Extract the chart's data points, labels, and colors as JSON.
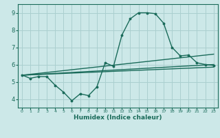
{
  "title": "",
  "xlabel": "Humidex (Indice chaleur)",
  "ylabel": "",
  "background_color": "#cce8e8",
  "grid_color": "#aacfcf",
  "line_color": "#1a6b5a",
  "xlim": [
    -0.5,
    23.5
  ],
  "ylim": [
    3.5,
    9.5
  ],
  "xticks": [
    0,
    1,
    2,
    3,
    4,
    5,
    6,
    7,
    8,
    9,
    10,
    11,
    12,
    13,
    14,
    15,
    16,
    17,
    18,
    19,
    20,
    21,
    22,
    23
  ],
  "yticks": [
    4,
    5,
    6,
    7,
    8,
    9
  ],
  "series1_x": [
    0,
    1,
    2,
    3,
    4,
    5,
    6,
    7,
    8,
    9,
    10,
    11,
    12,
    13,
    14,
    15,
    16,
    17,
    18,
    19,
    20,
    21,
    22,
    23
  ],
  "series1_y": [
    5.4,
    5.2,
    5.3,
    5.3,
    4.8,
    4.4,
    3.9,
    4.3,
    4.2,
    4.7,
    6.1,
    5.9,
    7.7,
    8.65,
    9.0,
    9.0,
    8.95,
    8.4,
    7.0,
    6.5,
    6.55,
    6.1,
    6.0,
    5.95
  ],
  "series2_x": [
    0,
    23
  ],
  "series2_y": [
    5.38,
    6.6
  ],
  "series3_x": [
    0,
    23
  ],
  "series3_y": [
    5.38,
    6.0
  ],
  "series4_x": [
    0,
    23
  ],
  "series4_y": [
    5.38,
    5.85
  ]
}
